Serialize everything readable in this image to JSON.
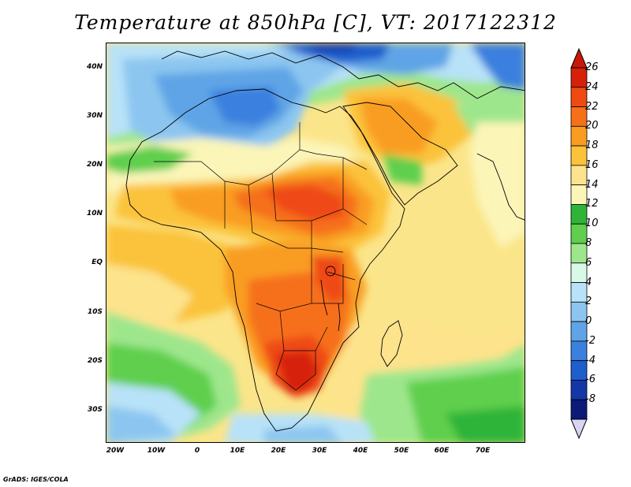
{
  "title": "Temperature at 850hPa [C], VT: 2017122312",
  "credit": "GrADS: IGES/COLA",
  "axes": {
    "lat_labels": [
      "40N",
      "30N",
      "20N",
      "10N",
      "EQ",
      "10S",
      "20S",
      "30S"
    ],
    "lon_labels": [
      "20W",
      "10W",
      "0",
      "10E",
      "20E",
      "30E",
      "40E",
      "50E",
      "60E",
      "70E"
    ]
  },
  "colorbar": {
    "labels": [
      "26",
      "24",
      "22",
      "20",
      "18",
      "16",
      "14",
      "12",
      "10",
      "8",
      "6",
      "4",
      "2",
      "0",
      "-2",
      "-4",
      "-6",
      "-8"
    ],
    "colors": [
      "#d6200a",
      "#ee4a12",
      "#f6701a",
      "#f99d22",
      "#fbc23a",
      "#fde38c",
      "#fbf5b8",
      "#2fb438",
      "#5fcf4d",
      "#9ee68c",
      "#d8f8e8",
      "#b8e2f8",
      "#8cc6f0",
      "#5fa4e6",
      "#3a80de",
      "#1f5ecd",
      "#1437a8",
      "#0c1a78"
    ],
    "top_arrow_color": "#cc1606",
    "bottom_arrow_color": "#d8d4f4"
  }
}
